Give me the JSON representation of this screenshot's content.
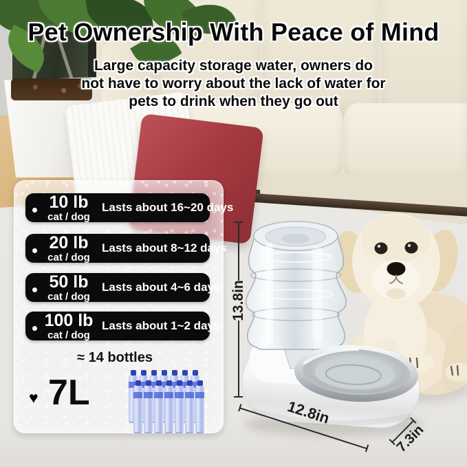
{
  "header": {
    "title": "Pet Ownership With Peace of Mind",
    "subtitle_lines": [
      "Large capacity storage water, owners do",
      "not have to worry about the lack of water for",
      "pets to drink when they go out"
    ]
  },
  "panel": {
    "rows": [
      {
        "weight": "10 lb",
        "animal": "cat / dog",
        "duration": "Lasts about 16~20 days"
      },
      {
        "weight": "20 lb",
        "animal": "cat / dog",
        "duration": "Lasts about 8~12 days"
      },
      {
        "weight": "50 lb",
        "animal": "cat / dog",
        "duration": "Lasts about 4~6 days"
      },
      {
        "weight": "100 lb",
        "animal": "cat / dog",
        "duration": "Lasts about 1~2 days"
      }
    ],
    "bottles_label": "≈ 14 bottles",
    "bottle_count": 14,
    "heart_icon": "♥",
    "capacity_label": "7L"
  },
  "product": {
    "height_label": "13.8in",
    "length_label": "12.8in",
    "depth_label": "7.3in"
  },
  "colors": {
    "row_bg": "#0b0b0b",
    "pillow_red": "#a73b42",
    "bottle_cap_blue": "#2e43b6",
    "couch_cream": "#e9e2d2",
    "wood_floor": "#d8b27c"
  }
}
